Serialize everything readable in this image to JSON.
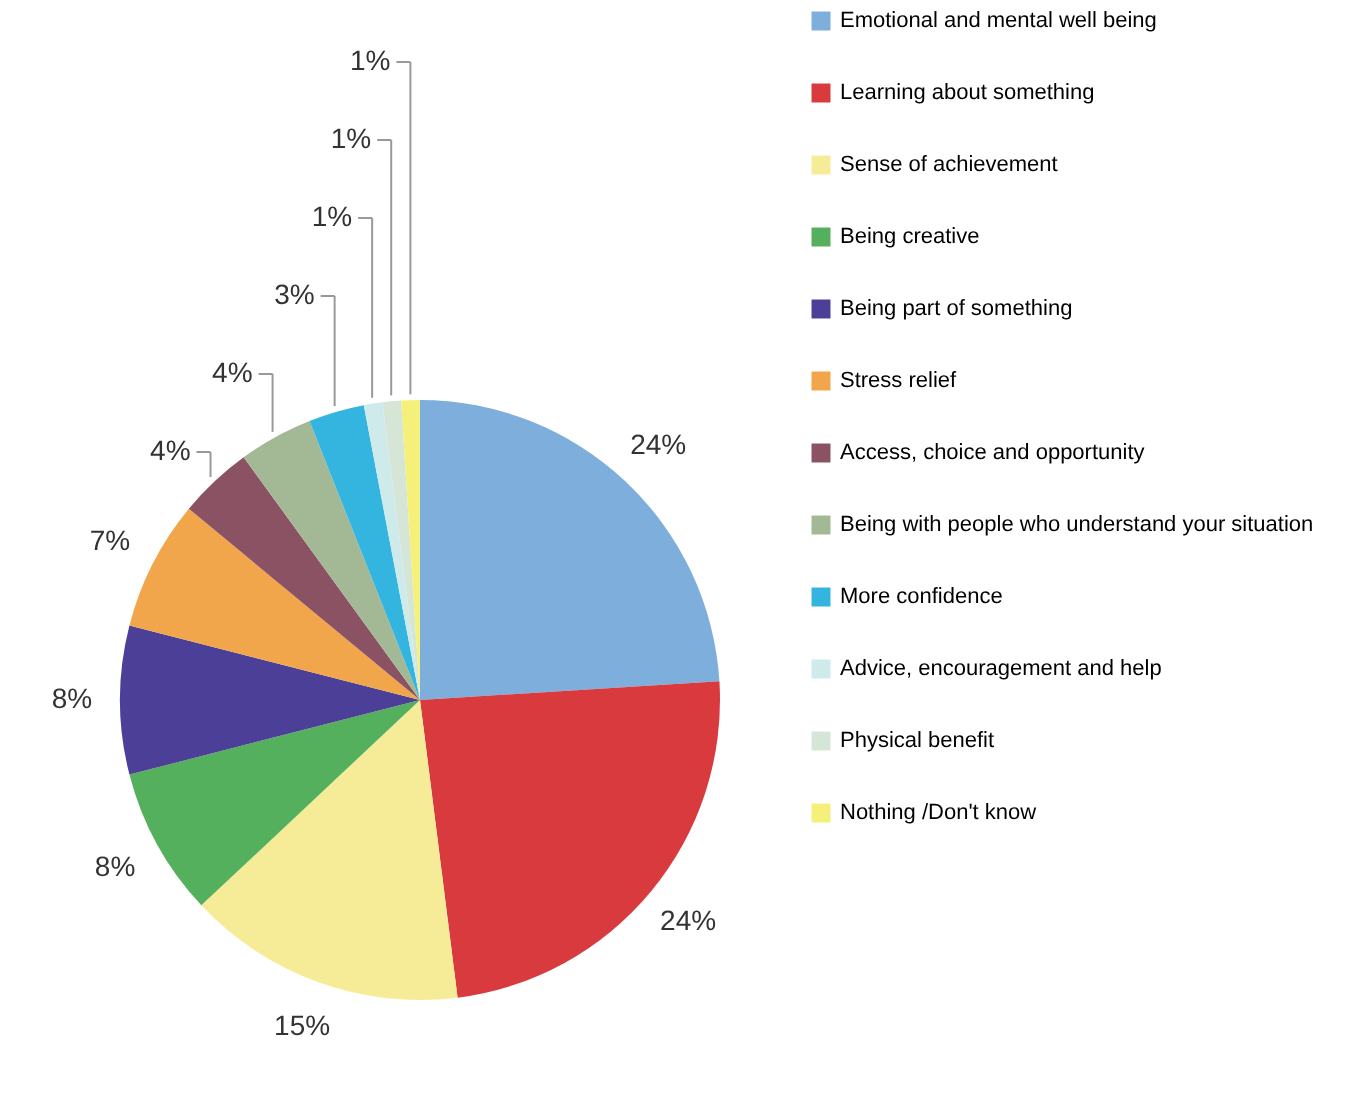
{
  "chart_data": {
    "type": "pie",
    "categories": [
      "Emotional and mental well being",
      "Learning about something",
      "Sense of achievement",
      "Being creative",
      "Being part of something",
      "Stress relief",
      "Access, choice and opportunity",
      "Being with people who understand your situation",
      "More confidence",
      "Advice, encouragement and help",
      "Physical benefit",
      "Nothing /Don't know"
    ],
    "values": [
      24,
      24,
      15,
      8,
      8,
      7,
      4,
      4,
      3,
      1,
      1,
      1
    ],
    "colors": [
      "#7eaedc",
      "#d83a3e",
      "#f6ec98",
      "#55b05e",
      "#4b3f98",
      "#f2a64c",
      "#8b5264",
      "#a3b996",
      "#33b5e0",
      "#cfeaea",
      "#d6e6d6",
      "#f4f07a"
    ],
    "value_labels": [
      "24%",
      "24%",
      "15%",
      "8%",
      "8%",
      "7%",
      "4%",
      "4%",
      "3%",
      "1%",
      "1%",
      "1%"
    ],
    "legend": "right"
  }
}
